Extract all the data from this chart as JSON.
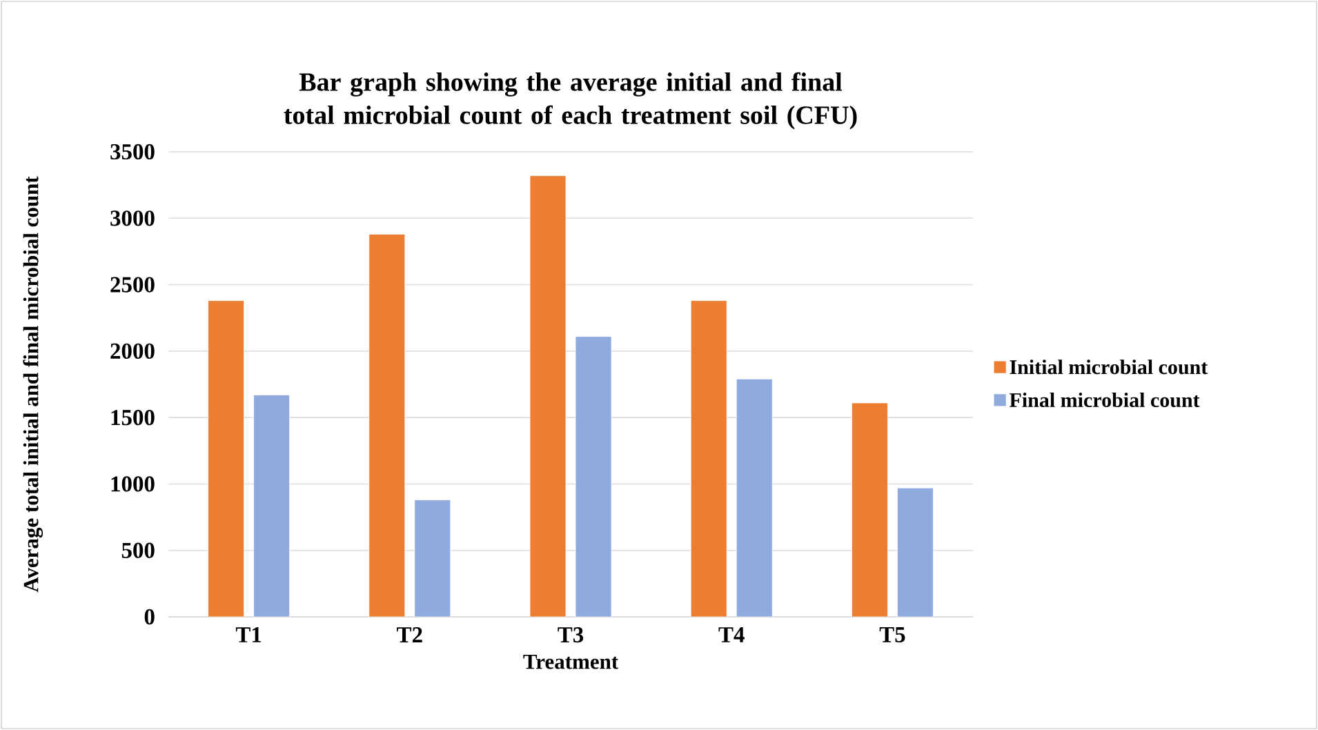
{
  "chart_data": {
    "type": "bar",
    "title": "Bar graph showing the average initial and final total microbial count of each treatment soil (CFU)",
    "xlabel": "Treatment",
    "ylabel": "Average total initial and final microbial count",
    "categories": [
      "T1",
      "T2",
      "T3",
      "T4",
      "T5"
    ],
    "series": [
      {
        "name": "Initial microbial count",
        "color": "#ed7d31",
        "values": [
          2380,
          2880,
          3320,
          2380,
          1610
        ]
      },
      {
        "name": "Final microbial count",
        "color": "#8faadc",
        "values": [
          1670,
          880,
          2110,
          1790,
          970
        ]
      }
    ],
    "ylim": [
      0,
      3500
    ],
    "yticks": [
      0,
      500,
      1000,
      1500,
      2000,
      2500,
      3000,
      3500
    ],
    "grid": "y",
    "legend": "right"
  }
}
